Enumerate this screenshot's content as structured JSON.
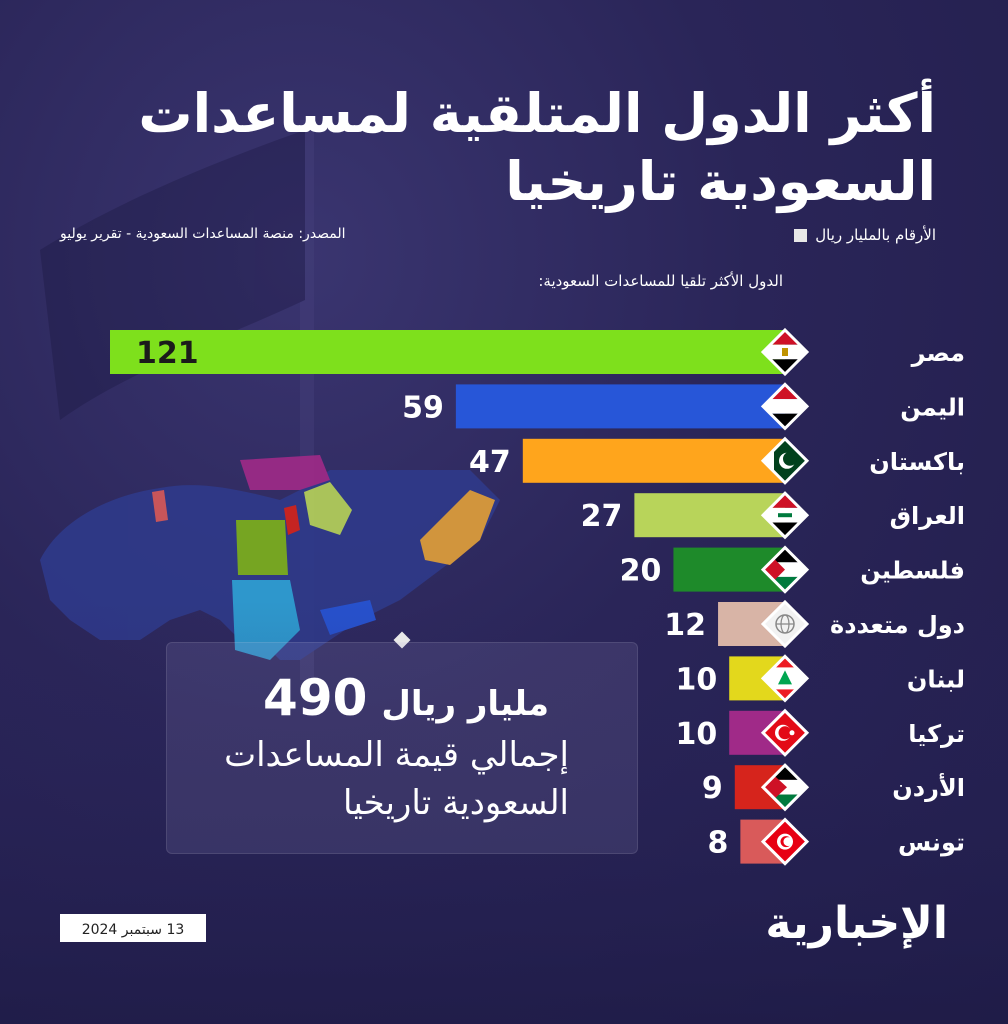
{
  "title": "أكثر الدول المتلقية لمساعدات السعودية تاريخيا",
  "units_note": "الأرقام بالمليار ريال",
  "source": "المصدر: منصة المساعدات السعودية - تقرير يوليو",
  "subtitle": "الدول الأكثر تلقيا للمساعدات السعودية:",
  "total": {
    "value": "490",
    "unit": "مليار ريال",
    "line2": "إجمالي قيمة المساعدات",
    "line3": "السعودية تاريخيا"
  },
  "date": "13 سبتمبر 2024",
  "logo": "الإخبارية",
  "chart_data": {
    "type": "bar",
    "orientation": "horizontal",
    "categories": [
      "مصر",
      "اليمن",
      "باكستان",
      "العراق",
      "فلسطين",
      "دول متعددة",
      "لبنان",
      "تركيا",
      "الأردن",
      "تونس"
    ],
    "values": [
      121,
      59,
      47,
      27,
      20,
      12,
      10,
      10,
      9,
      8
    ],
    "colors": [
      "#7ee01c",
      "#2756d8",
      "#ffa51c",
      "#b8d45a",
      "#1e8a2a",
      "#d8b4a6",
      "#e3d81c",
      "#a02a88",
      "#d6241c",
      "#d95a5a"
    ],
    "flag_icons": [
      "egypt-flag-icon",
      "yemen-flag-icon",
      "pakistan-flag-icon",
      "iraq-flag-icon",
      "palestine-flag-icon",
      "globe-icon",
      "lebanon-flag-icon",
      "turkey-flag-icon",
      "jordan-flag-icon",
      "tunisia-flag-icon"
    ],
    "title": "",
    "xlabel": "",
    "ylabel": ""
  }
}
